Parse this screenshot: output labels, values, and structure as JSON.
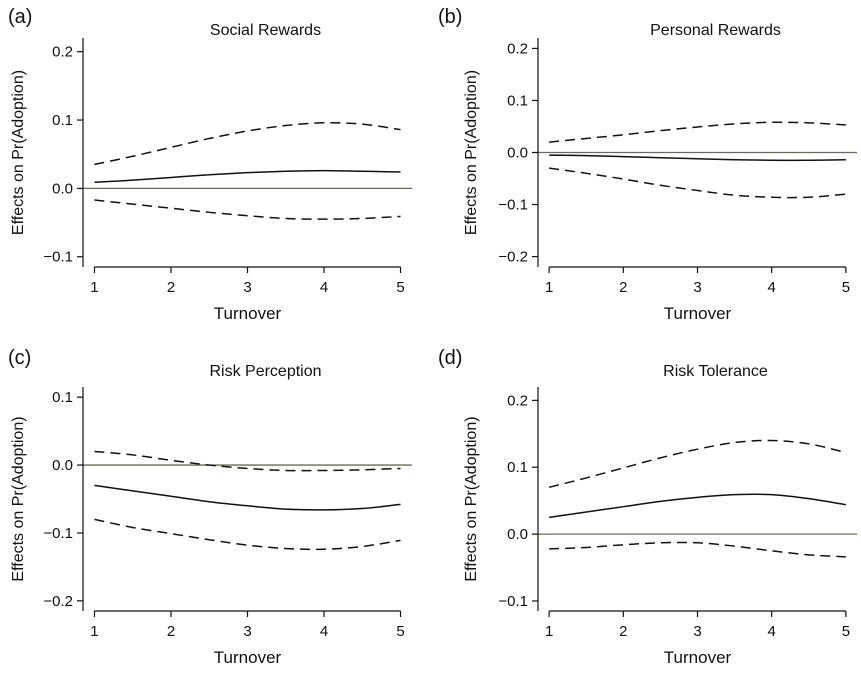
{
  "chart_data": [
    {
      "panel_label": "(a)",
      "type": "line",
      "title": "Social Rewards",
      "xlabel": "Turnover",
      "ylabel": "Effects on Pr(Adoption)",
      "xlim": [
        0.85,
        5.15
      ],
      "ylim": [
        -0.115,
        0.22
      ],
      "xticks": [
        1,
        2,
        3,
        4,
        5
      ],
      "xtick_labels": [
        "1",
        "2",
        "3",
        "4",
        "5"
      ],
      "yticks": [
        -0.1,
        0,
        0.1,
        0.2
      ],
      "ytick_labels": [
        "−0.1",
        "0.0",
        "0.1",
        "0.2"
      ],
      "reference_line": 0,
      "x": [
        1,
        1.5,
        2,
        2.5,
        3,
        3.5,
        4,
        4.5,
        5
      ],
      "series": [
        {
          "style": "solid",
          "values": [
            0.009,
            0.012,
            0.016,
            0.02,
            0.023,
            0.025,
            0.026,
            0.025,
            0.024
          ]
        },
        {
          "style": "dashed",
          "values": [
            0.035,
            0.047,
            0.06,
            0.073,
            0.084,
            0.092,
            0.096,
            0.094,
            0.086
          ]
        },
        {
          "style": "dashed",
          "values": [
            -0.017,
            -0.023,
            -0.029,
            -0.035,
            -0.04,
            -0.044,
            -0.045,
            -0.044,
            -0.041
          ]
        }
      ]
    },
    {
      "panel_label": "(b)",
      "type": "line",
      "title": "Personal Rewards",
      "xlabel": "Turnover",
      "ylabel": "Effects on Pr(Adoption)",
      "xlim": [
        0.85,
        5.15
      ],
      "ylim": [
        -0.22,
        0.22
      ],
      "xticks": [
        1,
        2,
        3,
        4,
        5
      ],
      "xtick_labels": [
        "1",
        "2",
        "3",
        "4",
        "5"
      ],
      "yticks": [
        -0.2,
        -0.1,
        0,
        0.1,
        0.2
      ],
      "ytick_labels": [
        "−0.2",
        "−0.1",
        "0.0",
        "0.1",
        "0.2"
      ],
      "reference_line": 0,
      "x": [
        1,
        1.5,
        2,
        2.5,
        3,
        3.5,
        4,
        4.5,
        5
      ],
      "series": [
        {
          "style": "solid",
          "values": [
            -0.005,
            -0.006,
            -0.008,
            -0.01,
            -0.012,
            -0.014,
            -0.015,
            -0.015,
            -0.014
          ]
        },
        {
          "style": "dashed",
          "values": [
            0.02,
            0.027,
            0.034,
            0.042,
            0.049,
            0.055,
            0.058,
            0.057,
            0.053
          ]
        },
        {
          "style": "dashed",
          "values": [
            -0.03,
            -0.04,
            -0.051,
            -0.063,
            -0.073,
            -0.082,
            -0.086,
            -0.086,
            -0.08
          ]
        }
      ]
    },
    {
      "panel_label": "(c)",
      "type": "line",
      "title": "Risk Perception",
      "xlabel": "Turnover",
      "ylabel": "Effects on Pr(Adoption)",
      "xlim": [
        0.85,
        5.15
      ],
      "ylim": [
        -0.215,
        0.115
      ],
      "xticks": [
        1,
        2,
        3,
        4,
        5
      ],
      "xtick_labels": [
        "1",
        "2",
        "3",
        "4",
        "5"
      ],
      "yticks": [
        -0.2,
        -0.1,
        0,
        0.1
      ],
      "ytick_labels": [
        "−0.2",
        "−0.1",
        "0.0",
        "0.1"
      ],
      "reference_line": 0,
      "x": [
        1,
        1.5,
        2,
        2.5,
        3,
        3.5,
        4,
        4.5,
        5
      ],
      "series": [
        {
          "style": "solid",
          "values": [
            -0.03,
            -0.038,
            -0.046,
            -0.054,
            -0.06,
            -0.065,
            -0.066,
            -0.064,
            -0.058
          ]
        },
        {
          "style": "dashed",
          "values": [
            0.02,
            0.015,
            0.007,
            0.0,
            -0.005,
            -0.008,
            -0.008,
            -0.007,
            -0.005
          ]
        },
        {
          "style": "dashed",
          "values": [
            -0.08,
            -0.092,
            -0.101,
            -0.11,
            -0.118,
            -0.123,
            -0.124,
            -0.12,
            -0.111
          ]
        }
      ]
    },
    {
      "panel_label": "(d)",
      "type": "line",
      "title": "Risk Tolerance",
      "xlabel": "Turnover",
      "ylabel": "Effects on Pr(Adoption)",
      "xlim": [
        0.85,
        5.15
      ],
      "ylim": [
        -0.115,
        0.22
      ],
      "xticks": [
        1,
        2,
        3,
        4,
        5
      ],
      "xtick_labels": [
        "1",
        "2",
        "3",
        "4",
        "5"
      ],
      "yticks": [
        -0.1,
        0,
        0.1,
        0.2
      ],
      "ytick_labels": [
        "−0.1",
        "0.0",
        "0.1",
        "0.2"
      ],
      "reference_line": 0,
      "x": [
        1,
        1.5,
        2,
        2.5,
        3,
        3.5,
        4,
        4.5,
        5
      ],
      "series": [
        {
          "style": "solid",
          "values": [
            0.025,
            0.033,
            0.041,
            0.049,
            0.055,
            0.059,
            0.059,
            0.053,
            0.044
          ]
        },
        {
          "style": "dashed",
          "values": [
            0.07,
            0.084,
            0.099,
            0.114,
            0.127,
            0.137,
            0.14,
            0.135,
            0.122
          ]
        },
        {
          "style": "dashed",
          "values": [
            -0.022,
            -0.02,
            -0.016,
            -0.013,
            -0.013,
            -0.018,
            -0.025,
            -0.031,
            -0.034
          ]
        }
      ]
    }
  ],
  "colors": {
    "line": "#111111",
    "reference_line": "#6b6b55",
    "axis": "#111111"
  }
}
